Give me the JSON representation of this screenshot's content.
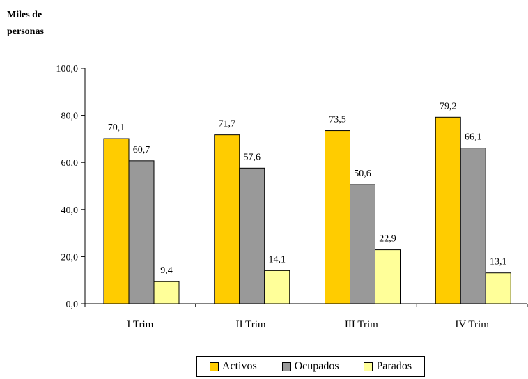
{
  "chart_data": {
    "type": "bar",
    "ylabel": "Miles de personas",
    "ylabel_lines": [
      "Miles de",
      "personas"
    ],
    "categories": [
      "I Trim",
      "II Trim",
      "III Trim",
      "IV Trim"
    ],
    "series": [
      {
        "name": "Activos",
        "color": "#FFCC00",
        "values": [
          70.1,
          71.7,
          73.5,
          79.2
        ],
        "labels": [
          "70,1",
          "71,7",
          "73,5",
          "79,2"
        ]
      },
      {
        "name": "Ocupados",
        "color": "#999999",
        "values": [
          60.7,
          57.6,
          50.6,
          66.1
        ],
        "labels": [
          "60,7",
          "57,6",
          "50,6",
          "66,1"
        ]
      },
      {
        "name": "Parados",
        "color": "#FFFF99",
        "values": [
          9.4,
          14.1,
          22.9,
          13.1
        ],
        "labels": [
          "9,4",
          "14,1",
          "22,9",
          "13,1"
        ]
      }
    ],
    "ylim": [
      0,
      100
    ],
    "yticks": [
      0,
      20,
      40,
      60,
      80,
      100
    ],
    "ytick_labels": [
      "0,0",
      "20,0",
      "40,0",
      "60,0",
      "80,0",
      "100,0"
    ],
    "grid": false,
    "legend_position": "bottom"
  }
}
